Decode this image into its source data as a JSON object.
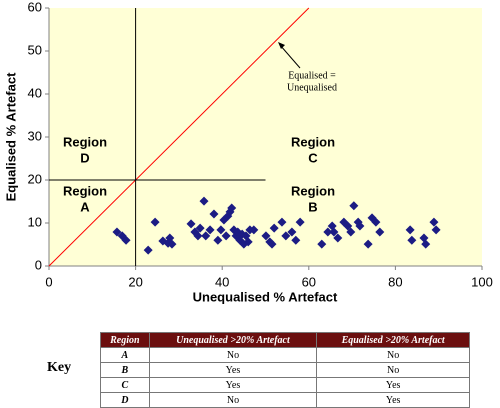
{
  "chart_data": {
    "type": "scatter",
    "x_label": "Unequalised % Artefact",
    "y_label": "Equalised % Artefact",
    "xlim": [
      0,
      100
    ],
    "xticks": [
      0,
      20,
      40,
      60,
      80,
      100
    ],
    "ylim": [
      0,
      60
    ],
    "yticks": [
      0,
      10,
      20,
      30,
      40,
      50,
      60
    ],
    "color": "#1c1c84",
    "background": "#ffffd6",
    "x": [
      15.7,
      16.9,
      17.8,
      22.9,
      24.5,
      26.3,
      27.5,
      27.9,
      28.4,
      32.8,
      33.7,
      34.4,
      34.9,
      35.8,
      36.2,
      37.2,
      38.1,
      39.0,
      39.7,
      40.4,
      40.9,
      41.3,
      41.8,
      42.2,
      42.7,
      43.2,
      43.6,
      44.1,
      44.6,
      45.0,
      45.5,
      46.0,
      46.4,
      47.3,
      50.1,
      51.0,
      51.5,
      52.0,
      53.8,
      54.7,
      56.1,
      57.0,
      58.0,
      63.0,
      64.4,
      65.4,
      65.8,
      66.7,
      68.1,
      69.0,
      69.7,
      70.4,
      71.4,
      71.8,
      73.7,
      74.6,
      75.5,
      76.4,
      83.4,
      83.8,
      86.6,
      87.0,
      88.9,
      89.4
    ],
    "values": [
      7.9,
      7.0,
      6.0,
      3.7,
      10.2,
      5.8,
      5.3,
      6.5,
      5.1,
      9.8,
      7.9,
      7.0,
      8.8,
      15.1,
      7.0,
      8.4,
      12.1,
      6.0,
      8.4,
      10.7,
      7.0,
      11.6,
      12.6,
      13.5,
      8.4,
      7.0,
      7.9,
      6.0,
      7.4,
      5.1,
      7.0,
      5.6,
      8.4,
      8.4,
      7.0,
      5.6,
      5.1,
      8.8,
      10.2,
      7.0,
      7.9,
      6.0,
      10.2,
      5.1,
      7.9,
      9.3,
      7.9,
      6.5,
      10.2,
      9.3,
      7.9,
      14.0,
      10.2,
      9.3,
      5.1,
      11.2,
      10.2,
      7.9,
      8.4,
      6.0,
      6.5,
      5.1,
      10.2,
      8.4
    ],
    "lines": [
      {
        "x": [
          0,
          60
        ],
        "y": [
          0,
          60
        ],
        "color": "#ff0000"
      },
      {
        "x": [
          20,
          20
        ],
        "y": [
          0,
          60
        ],
        "color": "#000000"
      },
      {
        "x": [
          0,
          50
        ],
        "y": [
          20,
          20
        ],
        "color": "#000000"
      }
    ],
    "region_labels": [
      [
        "Region",
        "D"
      ],
      [
        "Region",
        "C"
      ],
      [
        "Region",
        "A"
      ],
      [
        "Region",
        "B"
      ]
    ],
    "annotation": [
      "Equalised =",
      "Unequalised"
    ]
  },
  "key_label": "Key",
  "table": {
    "header": [
      "Region",
      "Unequalised >20% Artefact",
      "Equalised  >20% Artefact"
    ],
    "rows": [
      [
        "A",
        "No",
        "No"
      ],
      [
        "B",
        "Yes",
        "No"
      ],
      [
        "C",
        "Yes",
        "Yes"
      ],
      [
        "D",
        "No",
        "Yes"
      ]
    ]
  }
}
